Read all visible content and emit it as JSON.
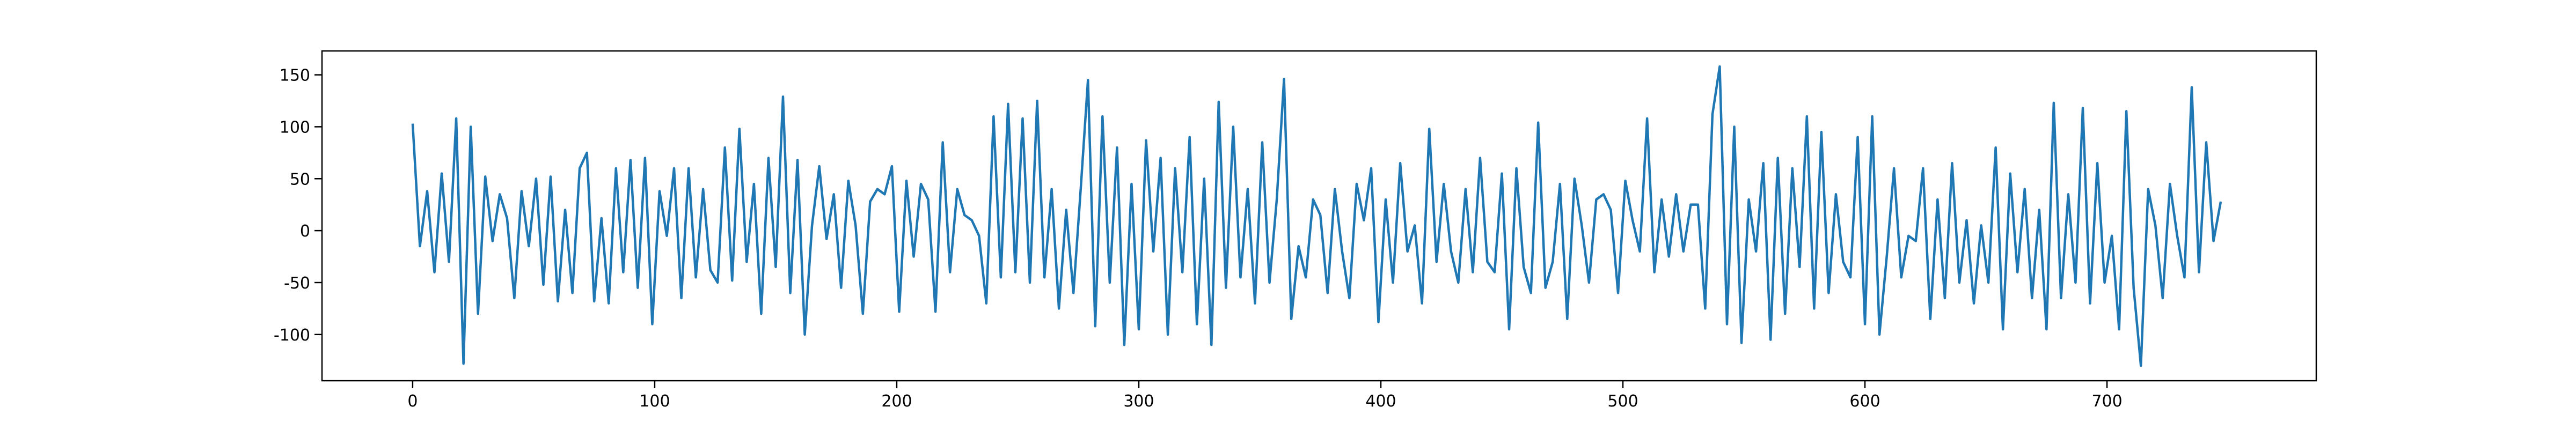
{
  "chart_data": {
    "type": "line",
    "x": [
      0,
      3,
      6,
      9,
      12,
      15,
      18,
      21,
      24,
      27,
      30,
      33,
      36,
      39,
      42,
      45,
      48,
      51,
      54,
      57,
      60,
      63,
      66,
      69,
      72,
      75,
      78,
      81,
      84,
      87,
      90,
      93,
      96,
      99,
      102,
      105,
      108,
      111,
      114,
      117,
      120,
      123,
      126,
      129,
      132,
      135,
      138,
      141,
      144,
      147,
      150,
      153,
      156,
      159,
      162,
      165,
      168,
      171,
      174,
      177,
      180,
      183,
      186,
      189,
      192,
      195,
      198,
      201,
      204,
      207,
      210,
      213,
      216,
      219,
      222,
      225,
      228,
      231,
      234,
      237,
      240,
      243,
      246,
      249,
      252,
      255,
      258,
      261,
      264,
      267,
      270,
      273,
      276,
      279,
      282,
      285,
      288,
      291,
      294,
      297,
      300,
      303,
      306,
      309,
      312,
      315,
      318,
      321,
      324,
      327,
      330,
      333,
      336,
      339,
      342,
      345,
      348,
      351,
      354,
      357,
      360,
      363,
      366,
      369,
      372,
      375,
      378,
      381,
      384,
      387,
      390,
      393,
      396,
      399,
      402,
      405,
      408,
      411,
      414,
      417,
      420,
      423,
      426,
      429,
      432,
      435,
      438,
      441,
      444,
      447,
      450,
      453,
      456,
      459,
      462,
      465,
      468,
      471,
      474,
      477,
      480,
      483,
      486,
      489,
      492,
      495,
      498,
      501,
      504,
      507,
      510,
      513,
      516,
      519,
      522,
      525,
      528,
      531,
      534,
      537,
      540,
      543,
      546,
      549,
      552,
      555,
      558,
      561,
      564,
      567,
      570,
      573,
      576,
      579,
      582,
      585,
      588,
      591,
      594,
      597,
      600,
      603,
      606,
      609,
      612,
      615,
      618,
      621,
      624,
      627,
      630,
      633,
      636,
      639,
      642,
      645,
      648,
      651,
      654,
      657,
      660,
      663,
      666,
      669,
      672,
      675,
      678,
      681,
      684,
      687,
      690,
      693,
      696,
      699,
      702,
      705,
      708,
      711,
      714,
      717,
      720,
      723,
      726,
      729,
      732,
      735,
      738,
      741,
      744,
      747
    ],
    "series": [
      {
        "color": "#1f77b4",
        "values": [
          103,
          -15,
          38,
          -40,
          55,
          -30,
          108,
          -128,
          100,
          -80,
          52,
          -10,
          35,
          12,
          -65,
          38,
          -15,
          50,
          -52,
          52,
          -68,
          20,
          -60,
          60,
          75,
          -68,
          12,
          -70,
          60,
          -40,
          68,
          -55,
          70,
          -90,
          38,
          -5,
          60,
          -65,
          60,
          -45,
          40,
          -38,
          -50,
          80,
          -48,
          98,
          -30,
          45,
          -80,
          70,
          -35,
          129,
          -60,
          68,
          -100,
          5,
          62,
          -8,
          35,
          -55,
          48,
          5,
          -80,
          28,
          40,
          35,
          62,
          -78,
          48,
          -25,
          45,
          30,
          -78,
          85,
          -40,
          40,
          15,
          10,
          -5,
          -70,
          110,
          -45,
          122,
          -40,
          108,
          -50,
          125,
          -45,
          40,
          -75,
          20,
          -60,
          40,
          145,
          -92,
          110,
          -50,
          80,
          -110,
          45,
          -95,
          87,
          -20,
          70,
          -100,
          60,
          -40,
          90,
          -90,
          50,
          -110,
          124,
          -55,
          100,
          -45,
          40,
          -70,
          85,
          -50,
          30,
          146,
          -85,
          -15,
          -45,
          30,
          15,
          -60,
          40,
          -20,
          -65,
          45,
          10,
          60,
          -88,
          30,
          -50,
          65,
          -20,
          5,
          -70,
          98,
          -30,
          45,
          -20,
          -50,
          40,
          -40,
          70,
          -30,
          -40,
          55,
          -95,
          60,
          -35,
          -60,
          104,
          -55,
          -30,
          45,
          -85,
          50,
          5,
          -50,
          30,
          35,
          20,
          -60,
          48,
          10,
          -20,
          108,
          -40,
          30,
          -25,
          35,
          -20,
          25,
          25,
          -75,
          112,
          158,
          -90,
          100,
          -108,
          30,
          -20,
          65,
          -105,
          70,
          -80,
          60,
          -35,
          110,
          -75,
          95,
          -60,
          35,
          -30,
          -45,
          90,
          -90,
          110,
          -100,
          -25,
          60,
          -45,
          -5,
          -10,
          60,
          -85,
          30,
          -65,
          65,
          -50,
          10,
          -70,
          5,
          -50,
          80,
          -95,
          55,
          -40,
          40,
          -65,
          20,
          -95,
          123,
          -65,
          35,
          -50,
          118,
          -70,
          65,
          -50,
          -5,
          -95,
          115,
          -55,
          -130,
          40,
          5,
          -65,
          45,
          -5,
          -45,
          138,
          -40,
          85,
          -10,
          28
        ]
      }
    ],
    "xlim": [
      -37.45,
      786.45
    ],
    "ylim": [
      -144.5,
      173
    ],
    "xticks": [
      0,
      100,
      200,
      300,
      400,
      500,
      600,
      700
    ],
    "yticks": [
      -100,
      -50,
      0,
      50,
      100,
      150
    ]
  }
}
